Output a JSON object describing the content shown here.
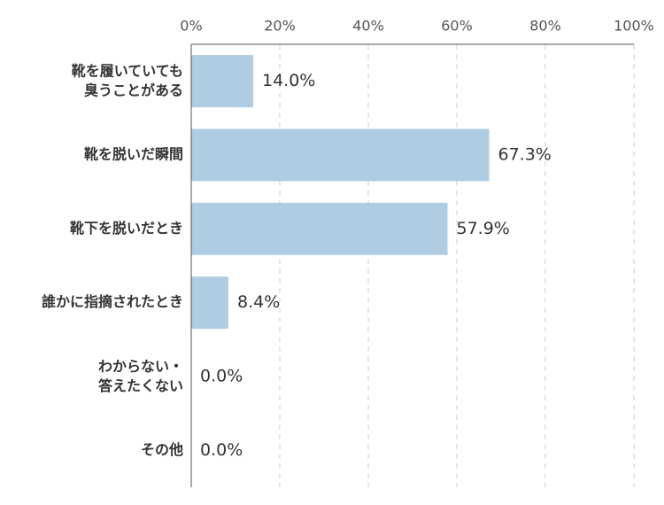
{
  "chart_data": {
    "type": "barh",
    "categories": [
      "靴を履いていても\n臭うことがある",
      "靴を脱いだ瞬間",
      "靴下を脱いだとき",
      "誰かに指摘されたとき",
      "わからない・\n答えたくない",
      "その他"
    ],
    "values": [
      14.0,
      67.3,
      57.9,
      8.4,
      0.0,
      0.0
    ],
    "value_labels": [
      "14.0%",
      "67.3%",
      "57.9%",
      "8.4%",
      "0.0%",
      "0.0%"
    ],
    "color": "#b0cce2",
    "xlim": [
      0,
      100
    ],
    "xticks": [
      {
        "value": 0,
        "label": "0%"
      },
      {
        "value": 20,
        "label": "20%"
      },
      {
        "value": 40,
        "label": "40%"
      },
      {
        "value": 60,
        "label": "60%"
      },
      {
        "value": 80,
        "label": "80%"
      },
      {
        "value": 100,
        "label": "100%"
      }
    ],
    "grid": true
  }
}
